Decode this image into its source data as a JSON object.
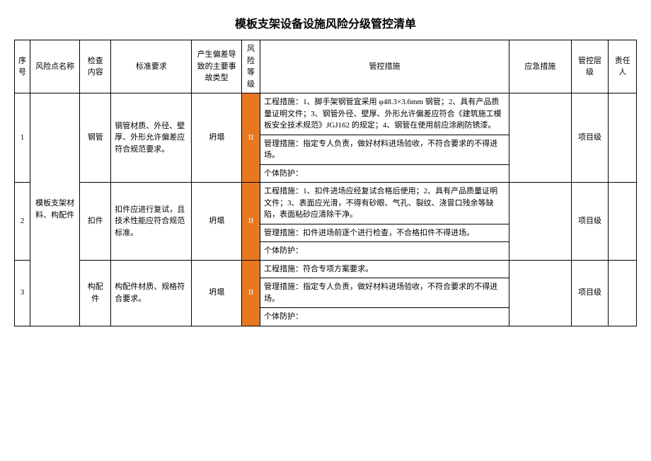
{
  "title": "模板支架设备设施风险分级管控清单",
  "columns": {
    "seq": "序号",
    "riskName": "风险点名称",
    "checkContent": "检查内容",
    "standard": "标准要求",
    "deviation": "产生偏差导致的主要事故类型",
    "riskLevel": "风险等级",
    "measures": "管控措施",
    "emergency": "应急措施",
    "controlLevel": "管控层级",
    "responsible": "责任人"
  },
  "riskColor": "#e87722",
  "riskText": "#ffffff",
  "rows": [
    {
      "seq": "1",
      "riskName": "模板支架材料、构配件",
      "checkContent": "钢管",
      "standard": "钢管材质、外径、壁厚、外形允许偏差应符合规范要求。",
      "deviation": "坍塌",
      "riskLevel": "II",
      "measures": {
        "eng": "工程措施：1、脚手架钢管宜采用 φ48.3×3.6mm 钢管；2、具有产品质量证明文件；3、钢管外径、壁厚、外形允许偏差应符合《建筑施工模板安全技术规范》JGJ162 的规定；4、钢管在使用前应涂刷防锈漆。",
        "mgmt": "管理措施：指定专人负责，做好材料进场验收，不符合要求的不得进场。",
        "ppe": "个体防护："
      },
      "emergency": "",
      "controlLevel": "项目级",
      "responsible": ""
    },
    {
      "seq": "2",
      "riskName": "",
      "checkContent": "扣件",
      "standard": "扣件应进行复试，且技术性能应符合规范标准。",
      "deviation": "坍塌",
      "riskLevel": "II",
      "measures": {
        "eng": "工程措施：1、扣件进场应经复试合格后使用；2、具有产品质量证明文件；3、表面应光滑，不得有砂眼、气孔、裂纹、浇冒口残余等缺陷，表面粘砂应清除干净。",
        "mgmt": "管理措施：扣件进场前逐个进行检查，不合格扣件不得进场。",
        "ppe": "个体防护："
      },
      "emergency": "",
      "controlLevel": "项目级",
      "responsible": ""
    },
    {
      "seq": "3",
      "riskName": "",
      "checkContent": "构配件",
      "standard": "构配件材质、规格符合要求。",
      "deviation": "坍塌",
      "riskLevel": "II",
      "measures": {
        "eng": "工程措施：符合专项方案要求。",
        "mgmt": "管理措施：指定专人负责，做好材料进场验收，不符合要求的不得进场。",
        "ppe": "个体防护："
      },
      "emergency": "",
      "controlLevel": "项目级",
      "responsible": ""
    }
  ]
}
